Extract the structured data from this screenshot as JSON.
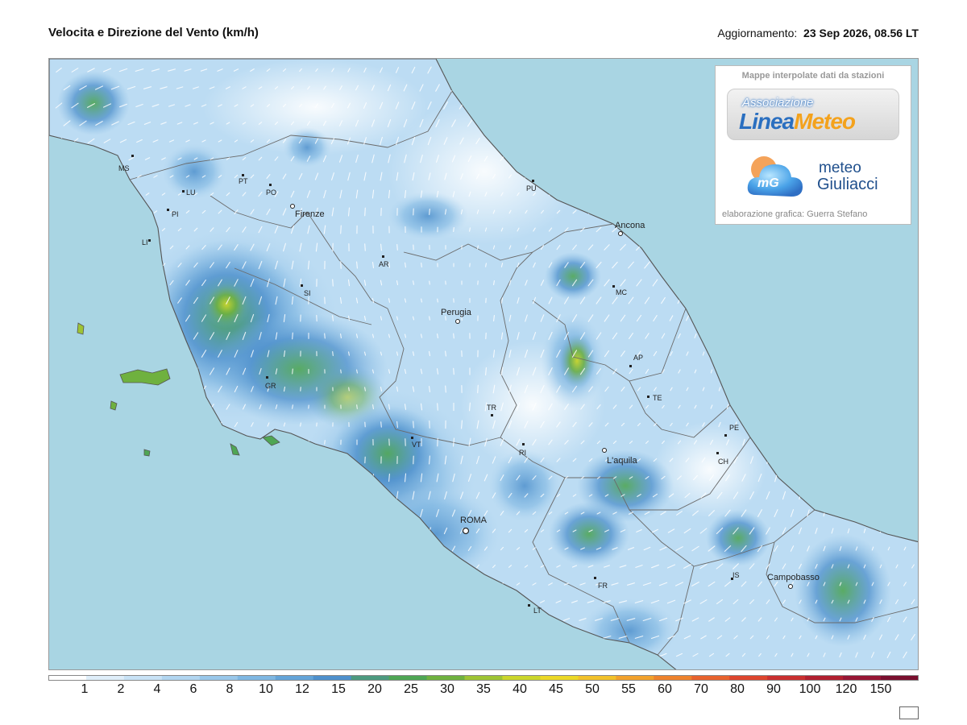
{
  "header": {
    "title": "Velocita e Direzione del Vento  (km/h)",
    "update_label": "Aggiornamento:",
    "update_value": "23 Sep 2026, 08.56 LT"
  },
  "logo_box": {
    "caption": "Mappe interpolate dati da stazioni",
    "lineameteo_assoc": "Associazione",
    "lineameteo_name_a": "Linea",
    "lineameteo_name_b": "Meteo",
    "mg_badge": "mG",
    "mg_line1": "meteo",
    "mg_line2": "Giuliacci",
    "credit": "elaborazione grafica: Guerra Stefano"
  },
  "cities": [
    {
      "name": "MS",
      "kind": "province"
    },
    {
      "name": "LU",
      "kind": "province"
    },
    {
      "name": "PT",
      "kind": "province"
    },
    {
      "name": "PO",
      "kind": "province"
    },
    {
      "name": "PI",
      "kind": "province"
    },
    {
      "name": "LI",
      "kind": "province"
    },
    {
      "name": "Firenze",
      "kind": "capital"
    },
    {
      "name": "AR",
      "kind": "province"
    },
    {
      "name": "SI",
      "kind": "province"
    },
    {
      "name": "GR",
      "kind": "province"
    },
    {
      "name": "PU",
      "kind": "province"
    },
    {
      "name": "Ancona",
      "kind": "capital"
    },
    {
      "name": "MC",
      "kind": "province"
    },
    {
      "name": "Perugia",
      "kind": "capital"
    },
    {
      "name": "AP",
      "kind": "province"
    },
    {
      "name": "TE",
      "kind": "province"
    },
    {
      "name": "TR",
      "kind": "province"
    },
    {
      "name": "PE",
      "kind": "province"
    },
    {
      "name": "CH",
      "kind": "province"
    },
    {
      "name": "VT",
      "kind": "province"
    },
    {
      "name": "RI",
      "kind": "province"
    },
    {
      "name": "L'aquila",
      "kind": "capital"
    },
    {
      "name": "ROMA",
      "kind": "capital"
    },
    {
      "name": "FR",
      "kind": "province"
    },
    {
      "name": "LT",
      "kind": "province"
    },
    {
      "name": "IS",
      "kind": "province"
    },
    {
      "name": "Campobasso",
      "kind": "capital"
    }
  ],
  "scale": {
    "labels": [
      "1",
      "2",
      "4",
      "6",
      "8",
      "10",
      "12",
      "15",
      "20",
      "25",
      "30",
      "35",
      "40",
      "45",
      "50",
      "55",
      "60",
      "70",
      "80",
      "90",
      "100",
      "120",
      "150"
    ],
    "colors": [
      "#ffffff",
      "#dfeef9",
      "#c8e2f5",
      "#b1d5f0",
      "#99c7ea",
      "#7fb7e2",
      "#64a4d8",
      "#4e90cc",
      "#4d9a7f",
      "#4fa654",
      "#6fb13f",
      "#9ec434",
      "#cbd62b",
      "#ecd826",
      "#f2c12a",
      "#f2a12c",
      "#ee822c",
      "#e8632d",
      "#dd452d",
      "#c92f2f",
      "#b11f2f",
      "#971634",
      "#7a0f2e"
    ]
  },
  "colors": {
    "sea": "#a9d5e3",
    "land_light": "#e4f1fb",
    "border": "#6a6a6a"
  }
}
